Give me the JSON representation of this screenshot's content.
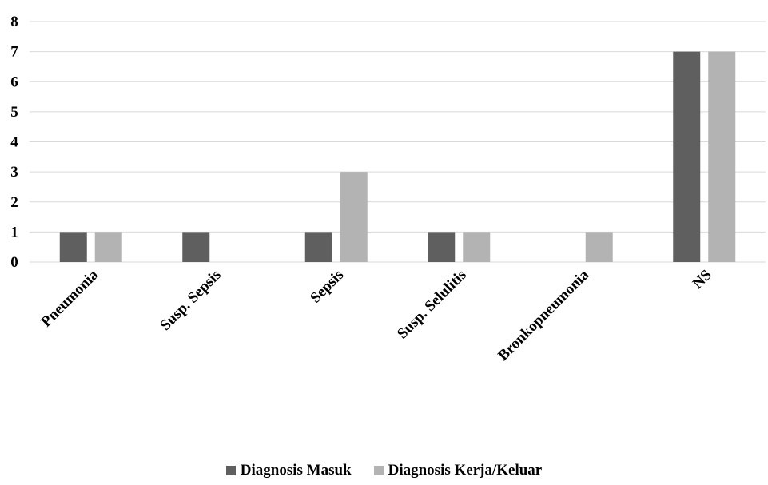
{
  "colors": {
    "series_masuk": "#5f5f5f",
    "series_keluar": "#b3b3b3",
    "grid": "#d9d9d9",
    "axis": "#d9d9d9"
  },
  "chart_data": {
    "type": "bar",
    "title": "",
    "xlabel": "",
    "ylabel": "",
    "ylim": [
      0,
      8
    ],
    "yticks": [
      "0",
      "1",
      "2",
      "3",
      "4",
      "5",
      "6",
      "7",
      "8"
    ],
    "grid": true,
    "legend_position": "bottom",
    "categories": [
      "Pneumonia",
      "Susp. Sepsis",
      "Sepsis",
      "Susp. Selulitis",
      "Bronkopneumonia",
      "NS"
    ],
    "series": [
      {
        "name": "Diagnosis Masuk",
        "values": [
          1,
          1,
          1,
          1,
          0,
          7
        ]
      },
      {
        "name": "Diagnosis Kerja/Keluar",
        "values": [
          1,
          0,
          3,
          1,
          1,
          7
        ]
      }
    ]
  }
}
